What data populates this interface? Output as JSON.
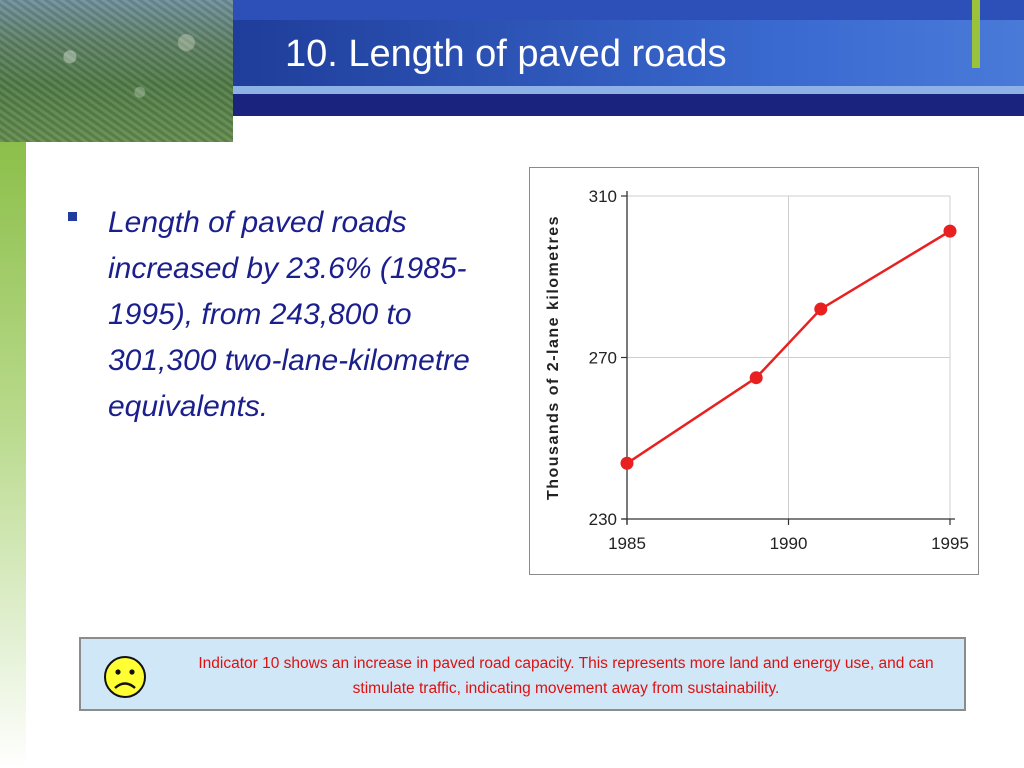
{
  "slide": {
    "title": "10. Length of paved roads",
    "bullet": "Length of paved roads increased by 23.6% (1985-1995), from 243,800 to 301,300 two-lane-kilometre equivalents.",
    "callout": "Indicator 10 shows an increase in paved road capacity. This represents more land and energy use, and can stimulate traffic, indicating movement away from sustainability.",
    "callout_icon": "sad-face-icon"
  },
  "colors": {
    "title_bar": "#2d4fb8",
    "bullet_text": "#1a1f8c",
    "series_line": "#e82020",
    "callout_text": "#e01010",
    "callout_bg": "#cfe7f7"
  },
  "chart_data": {
    "type": "line",
    "ylabel": "Thousands of 2-lane kilometres",
    "xlabel": "",
    "xlim": [
      1985,
      1995
    ],
    "ylim": [
      230,
      310
    ],
    "xticks": [
      "1985",
      "1990",
      "1995"
    ],
    "yticks": [
      "230",
      "270",
      "310"
    ],
    "grid": true,
    "series": [
      {
        "values": [
          {
            "x": 1985,
            "y": 243.8
          },
          {
            "x": 1989,
            "y": 265
          },
          {
            "x": 1991,
            "y": 282
          },
          {
            "x": 1995,
            "y": 301.3
          }
        ]
      }
    ]
  }
}
